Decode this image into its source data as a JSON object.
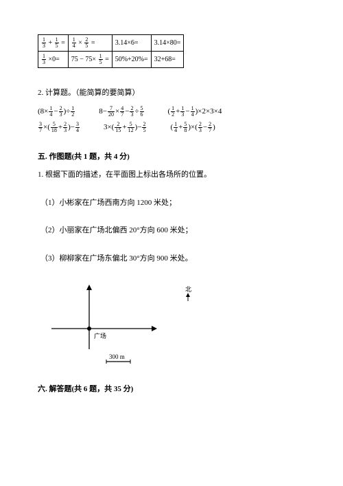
{
  "table": {
    "r1c1_a": {
      "n": "1",
      "d": "3"
    },
    "r1c1_op": " + ",
    "r1c1_b": {
      "n": "1",
      "d": "5"
    },
    "r1c1_eq": " = ",
    "r1c2_a": {
      "n": "1",
      "d": "4"
    },
    "r1c2_op": " × ",
    "r1c2_b": {
      "n": "2",
      "d": "5"
    },
    "r1c2_eq": " = ",
    "r1c3": "3.14×6=",
    "r1c4": "3.14×80=",
    "r2c1_a": {
      "n": "1",
      "d": "3"
    },
    "r2c1_rest": " ×0=",
    "r2c2_pre": "75 − 75× ",
    "r2c2_f": {
      "n": "1",
      "d": "5"
    },
    "r2c2_eq": " =",
    "r2c3": "50%+20%=",
    "r2c4": "32+68="
  },
  "q2": "2. 计算题。（能简算的要简算）",
  "exprs": {
    "row1": [
      {
        "parts": [
          "(8×",
          "F1/4",
          "−",
          "F2/3",
          ")÷",
          "F1/2"
        ]
      },
      {
        "parts": [
          "8−",
          "F7/20",
          "×",
          "F4/7",
          "−",
          "F2/3",
          "÷",
          "F5/6"
        ]
      },
      {
        "parts": [
          "(",
          "F1/2",
          "+",
          "F1/3",
          "−",
          "F1/4",
          ")×2×3×4"
        ]
      }
    ],
    "row2": [
      {
        "parts": [
          "F3/7",
          "×(",
          "F5/18",
          "+",
          "F2/3",
          ")−",
          "F3/4"
        ]
      },
      {
        "parts": [
          "3×(",
          "F2/15",
          "+",
          "F5/12",
          ")−",
          "F2/5"
        ]
      },
      {
        "parts": [
          "(",
          "F1/4",
          "+",
          "F5/8",
          ")×(",
          "F2/3",
          "−",
          "F2/7",
          ")"
        ]
      }
    ]
  },
  "section5": "五. 作图题(共 1 题，共 4 分)",
  "q5_1": "1. 根据下面的描述，在平面图上标出各场所的位置。",
  "q5_1_1": "（1）小彬家在广场西南方向 1200 米处；",
  "q5_1_2": "（2）小丽家在广场北偏西 20°方向 600 米处；",
  "q5_1_3": "（3）柳柳家在广场东偏北 30°方向 900 米处。",
  "fig": {
    "north": "北",
    "center": "广场",
    "scale": "300 m",
    "stroke": "#000000"
  },
  "section6": "六. 解答题(共 6 题，共 35 分)"
}
